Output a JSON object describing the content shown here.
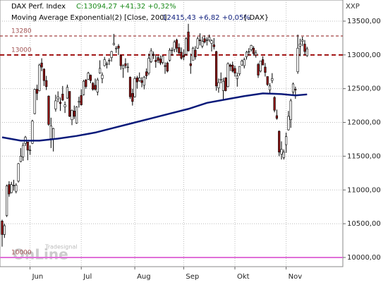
{
  "chart_data": {
    "type": "candlestick",
    "title": "DAX Perf. Index",
    "title_value": "C:13094,27 +41,32 +0,32%",
    "subtitle": "Moving Average Exponential(2) [Close, 200]",
    "subtitle_value": "12415,43 +6,82 +0,05%",
    "subtitle_symbol": "{.DAX}",
    "corner_label": "XXP",
    "watermark": "Tradesignal",
    "watermark_big": "OnLine",
    "ylim": [
      9864,
      13813
    ],
    "yticks": [
      {
        "value": 10000,
        "label": "10000,00"
      },
      {
        "value": 10500,
        "label": "10500,00"
      },
      {
        "value": 11000,
        "label": "11000,00"
      },
      {
        "value": 11500,
        "label": "11500,00"
      },
      {
        "value": 12000,
        "label": "12000,00"
      },
      {
        "value": 12500,
        "label": "12500,00"
      },
      {
        "value": 13000,
        "label": "13000,00"
      },
      {
        "value": 13500,
        "label": "13500,00"
      }
    ],
    "grid": true,
    "up_color": "#ffffff",
    "down_color": "#8b1010",
    "wick_color": "#000000",
    "categories": [
      null,
      null,
      null,
      null,
      null,
      null,
      null,
      null,
      null,
      null,
      null,
      null,
      "Jun",
      null,
      null,
      null,
      null,
      null,
      null,
      null,
      null,
      null,
      null,
      null,
      null,
      null,
      null,
      null,
      null,
      null,
      null,
      null,
      null,
      null,
      "Jul",
      null,
      null,
      null,
      null,
      null,
      null,
      null,
      null,
      null,
      null,
      null,
      null,
      null,
      null,
      null,
      null,
      null,
      null,
      null,
      null,
      null,
      null,
      "Aug",
      null,
      null,
      null,
      null,
      null,
      null,
      null,
      null,
      null,
      null,
      null,
      null,
      null,
      null,
      null,
      null,
      null,
      null,
      null,
      null,
      "Sep",
      null,
      null,
      null,
      null,
      null,
      null,
      null,
      null,
      null,
      null,
      null,
      null,
      null,
      null,
      null,
      null,
      null,
      null,
      null,
      null,
      null,
      "Okt",
      null,
      null,
      null,
      null,
      null,
      null,
      null,
      null,
      null,
      null,
      null,
      null,
      null,
      null,
      null,
      null,
      null,
      null,
      null,
      null,
      null,
      "Nov",
      null,
      null,
      null,
      null,
      null,
      null,
      null,
      null,
      null
    ],
    "candles": [
      [
        10540,
        10560,
        10160,
        10340
      ],
      [
        10340,
        10500,
        10290,
        10470
      ],
      [
        10620,
        11080,
        10600,
        11060
      ],
      [
        11080,
        11130,
        10900,
        10940
      ],
      [
        10960,
        11120,
        10950,
        11080
      ],
      [
        11070,
        11150,
        10990,
        11070
      ],
      [
        10980,
        11100,
        10950,
        11070
      ],
      [
        11130,
        11400,
        11110,
        11390
      ],
      [
        11420,
        11620,
        11410,
        11500
      ],
      [
        11490,
        11700,
        11430,
        11660
      ],
      [
        11690,
        11800,
        11650,
        11780
      ],
      [
        11710,
        11710,
        11440,
        11590
      ],
      [
        11590,
        11660,
        11520,
        11590
      ],
      [
        11690,
        12040,
        11680,
        12020
      ],
      [
        12130,
        12500,
        12120,
        12490
      ],
      [
        12490,
        12560,
        12330,
        12430
      ],
      [
        12470,
        12870,
        12460,
        12850
      ],
      [
        12880,
        12950,
        12760,
        12820
      ],
      [
        12790,
        12800,
        12540,
        12620
      ],
      [
        12620,
        12690,
        12480,
        12530
      ],
      [
        12390,
        12400,
        11950,
        11970
      ],
      [
        11760,
        12070,
        11620,
        11950
      ],
      [
        11750,
        11920,
        11570,
        11910
      ],
      [
        12200,
        12410,
        12160,
        12320
      ],
      [
        12350,
        12460,
        12300,
        12380
      ],
      [
        12300,
        12370,
        12170,
        12280
      ],
      [
        12420,
        12540,
        12320,
        12330
      ],
      [
        12230,
        12310,
        12140,
        12260
      ],
      [
        12360,
        12560,
        12350,
        12520
      ],
      [
        12460,
        12460,
        12080,
        12090
      ],
      [
        12040,
        12190,
        11960,
        12180
      ],
      [
        12170,
        12250,
        12050,
        12090
      ],
      [
        11990,
        12240,
        11980,
        12230
      ],
      [
        12300,
        12380,
        12220,
        12310
      ],
      [
        12400,
        12490,
        12250,
        12260
      ],
      [
        12410,
        12630,
        12400,
        12610
      ],
      [
        12630,
        12640,
        12500,
        12530
      ],
      [
        12640,
        12750,
        12630,
        12730
      ],
      [
        12700,
        12710,
        12580,
        12620
      ],
      [
        12580,
        12600,
        12470,
        12490
      ],
      [
        12550,
        12650,
        12470,
        12490
      ],
      [
        12450,
        12660,
        12400,
        12630
      ],
      [
        12730,
        12920,
        12720,
        12800
      ],
      [
        12650,
        12740,
        12580,
        12700
      ],
      [
        12840,
        12970,
        12830,
        12930
      ],
      [
        12860,
        12900,
        12800,
        12870
      ],
      [
        12920,
        12950,
        12850,
        12920
      ],
      [
        12960,
        13060,
        12900,
        13050
      ],
      [
        13150,
        13310,
        13140,
        13170
      ],
      [
        13090,
        13130,
        13030,
        13100
      ],
      [
        13130,
        13160,
        13000,
        13100
      ],
      [
        12990,
        13000,
        12780,
        12840
      ],
      [
        12800,
        12860,
        12660,
        12840
      ],
      [
        12870,
        12950,
        12800,
        12840
      ],
      [
        12820,
        12880,
        12740,
        12820
      ],
      [
        12670,
        12680,
        12350,
        12380
      ],
      [
        12430,
        12500,
        12250,
        12310
      ],
      [
        12380,
        12680,
        12370,
        12650
      ],
      [
        12660,
        12690,
        12500,
        12600
      ],
      [
        12620,
        12740,
        12600,
        12660
      ],
      [
        12620,
        12670,
        12520,
        12590
      ],
      [
        12550,
        12690,
        12490,
        12670
      ],
      [
        12750,
        12800,
        12640,
        12690
      ],
      [
        12730,
        13020,
        12700,
        12950
      ],
      [
        12900,
        13100,
        12880,
        13060
      ],
      [
        13010,
        13050,
        12940,
        12990
      ],
      [
        12920,
        12990,
        12810,
        12900
      ],
      [
        12960,
        12990,
        12880,
        12920
      ],
      [
        12940,
        12990,
        12850,
        12880
      ],
      [
        12890,
        12990,
        12860,
        12980
      ],
      [
        12840,
        12890,
        12720,
        12830
      ],
      [
        12880,
        12900,
        12740,
        12760
      ],
      [
        12920,
        13100,
        12900,
        13070
      ],
      [
        13070,
        13110,
        12990,
        13070
      ],
      [
        13080,
        13220,
        13040,
        13190
      ],
      [
        13220,
        13240,
        13040,
        13100
      ],
      [
        13110,
        13170,
        13010,
        13030
      ],
      [
        13040,
        13110,
        12930,
        12950
      ],
      [
        12990,
        13080,
        12920,
        12970
      ],
      [
        13010,
        13260,
        12990,
        13240
      ],
      [
        13340,
        13460,
        13050,
        13060
      ],
      [
        12870,
        13020,
        12720,
        12840
      ],
      [
        12920,
        13120,
        12920,
        13100
      ],
      [
        13070,
        13130,
        12930,
        12970
      ],
      [
        13100,
        13270,
        13090,
        13240
      ],
      [
        13220,
        13320,
        13140,
        13210
      ],
      [
        13130,
        13270,
        13100,
        13200
      ],
      [
        13240,
        13290,
        13170,
        13190
      ],
      [
        13220,
        13260,
        13140,
        13220
      ],
      [
        13220,
        13300,
        13190,
        13260
      ],
      [
        13170,
        13230,
        13050,
        13210
      ],
      [
        13150,
        13250,
        13080,
        13120
      ],
      [
        13050,
        13060,
        12470,
        12540
      ],
      [
        12510,
        12650,
        12440,
        12590
      ],
      [
        12630,
        12740,
        12580,
        12640
      ],
      [
        12470,
        12660,
        12340,
        12610
      ],
      [
        12660,
        12670,
        12460,
        12470
      ],
      [
        12530,
        12890,
        12520,
        12870
      ],
      [
        12850,
        12870,
        12760,
        12830
      ],
      [
        12850,
        12900,
        12740,
        12760
      ],
      [
        12800,
        12840,
        12680,
        12730
      ],
      [
        12650,
        12740,
        12530,
        12690
      ],
      [
        12720,
        12830,
        12690,
        12830
      ],
      [
        12850,
        12930,
        12840,
        12910
      ],
      [
        12840,
        12960,
        12800,
        12930
      ],
      [
        12970,
        13060,
        12930,
        13040
      ],
      [
        13050,
        13100,
        12990,
        13050
      ],
      [
        13080,
        13150,
        13050,
        13140
      ],
      [
        13100,
        13130,
        12990,
        13020
      ],
      [
        13000,
        13070,
        12960,
        13030
      ],
      [
        12860,
        12880,
        12660,
        12700
      ],
      [
        12760,
        12910,
        12740,
        12910
      ],
      [
        12930,
        12980,
        12850,
        12850
      ],
      [
        12820,
        12880,
        12680,
        12740
      ],
      [
        12680,
        12680,
        12540,
        12560
      ],
      [
        12480,
        12580,
        12420,
        12540
      ],
      [
        12620,
        12730,
        12580,
        12650
      ],
      [
        12370,
        12390,
        12150,
        12180
      ],
      [
        12100,
        12190,
        12040,
        12060
      ],
      [
        11870,
        11880,
        11500,
        11560
      ],
      [
        11530,
        11720,
        11450,
        11600
      ],
      [
        11480,
        11600,
        11450,
        11560
      ],
      [
        11670,
        11850,
        11550,
        11790
      ],
      [
        11890,
        12170,
        11880,
        12090
      ],
      [
        12040,
        12350,
        11920,
        12320
      ],
      [
        12450,
        12590,
        12410,
        12570
      ],
      [
        12490,
        12530,
        12350,
        12480
      ],
      [
        12750,
        13300,
        12720,
        13100
      ],
      [
        13130,
        13240,
        12980,
        13160
      ],
      [
        13200,
        13270,
        13130,
        13220
      ],
      [
        13160,
        13220,
        13000,
        13050
      ],
      [
        12990,
        13120,
        12970,
        13090
      ]
    ],
    "ema": {
      "color": "#0a1a7a",
      "x": [
        0,
        8,
        16,
        24,
        32,
        40,
        48,
        56,
        64,
        72,
        80,
        88,
        96,
        104,
        112,
        120,
        126,
        131
      ],
      "values": [
        11780,
        11730,
        11730,
        11760,
        11800,
        11850,
        11920,
        11990,
        12060,
        12130,
        12200,
        12290,
        12340,
        12390,
        12430,
        12420,
        12400,
        12415
      ]
    },
    "levels": [
      {
        "value": 13280,
        "color": "#8b1010",
        "dash": "4 3",
        "width": 1
      },
      {
        "value": 13000,
        "color": "#a01010",
        "dash": "6 4",
        "width": 2
      },
      {
        "value": 10000,
        "color": "#e070d8",
        "dash": "none",
        "width": 2
      }
    ]
  }
}
